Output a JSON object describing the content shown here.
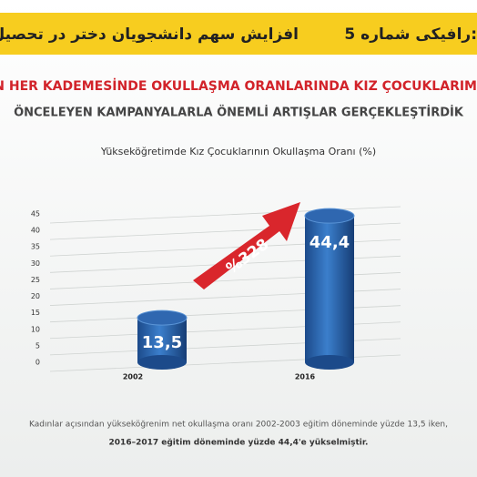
{
  "header": {
    "left": "افزایش سهم دانشجویان دختر در تحصیل",
    "right": "رافیکی شماره 5:"
  },
  "chart_data": {
    "type": "bar",
    "heading": "TİMİN HER KADEMESİNDE OKULLAŞMA ORANLARINDA KIZ ÇOCUKLARIM",
    "subheading": "ÖNCELEYEN KAMPANYALARLA ÖNEMLİ ARTIŞLAR GERÇEKLEŞTİRDİK",
    "title": "Yükseköğretimde Kız Çocuklarının Okullaşma Oranı (%)",
    "categories": [
      "2002",
      "2016"
    ],
    "values": [
      13.5,
      44.4
    ],
    "value_labels": [
      "13,5",
      "44,4"
    ],
    "annotation": "%328",
    "color": "#2f67b0",
    "ylim": [
      0,
      45
    ],
    "yticks": [
      0,
      5,
      10,
      15,
      20,
      25,
      30,
      35,
      40,
      45
    ],
    "grid": true
  },
  "footnote": [
    "Kadınlar açısından yükseköğrenim net okullaşma oranı 2002-2003 eğitim döneminde yüzde 13,5 iken,",
    "2016–2017 eğitim döneminde yüzde 44,4'e yükselmiştir."
  ]
}
